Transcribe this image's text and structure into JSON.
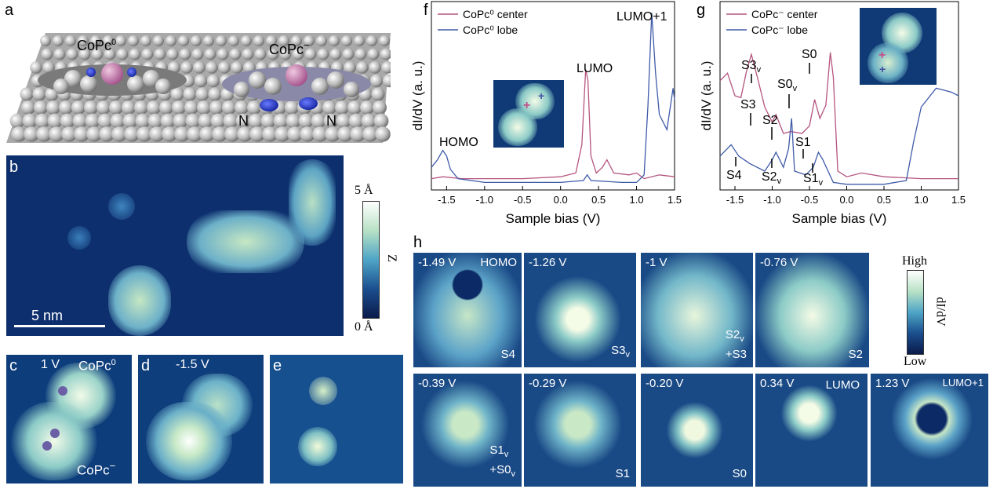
{
  "panels": {
    "a": {
      "letter": "a",
      "mol_left": "CoPc",
      "mol_left_sup": "0",
      "mol_right": "CoPc",
      "mol_right_sup": "−",
      "n_left": "N",
      "n_right": "N"
    },
    "b": {
      "letter": "b",
      "scalebar": "5 nm",
      "cbar_top": "5 Å",
      "cbar_bottom": "0 Å",
      "cbar_label": "Z"
    },
    "c": {
      "letter": "c",
      "bias": "1 V",
      "top_label": "CoPc",
      "top_sup": "0",
      "bottom_label": "CoPc",
      "bottom_sup": "−"
    },
    "d": {
      "letter": "d",
      "bias": "-1.5 V"
    },
    "e": {
      "letter": "e"
    },
    "f": {
      "letter": "f"
    },
    "g": {
      "letter": "g"
    },
    "h": {
      "letter": "h",
      "cbar_top": "High",
      "cbar_bottom": "Low",
      "cbar_label": "dI/dV"
    }
  },
  "chart_data": [
    {
      "type": "line",
      "panel": "f",
      "xlabel": "Sample bias (V)",
      "ylabel": "dI/dV (a. u.)",
      "xlim": [
        -1.7,
        1.5
      ],
      "xticks": [
        "-1.5",
        "-1.0",
        "-0.5",
        "0.0",
        "0.5",
        "1.0",
        "1.5"
      ],
      "legend": "top-left",
      "series": [
        {
          "name": "CoPc⁰ center",
          "color": "#b5547e",
          "x": [
            -1.7,
            -1.55,
            -1.3,
            -1.0,
            -0.5,
            0.0,
            0.2,
            0.28,
            0.33,
            0.36,
            0.4,
            0.47,
            0.55,
            0.61,
            0.7,
            0.9,
            1.0,
            1.1,
            1.3,
            1.5
          ],
          "y": [
            0.06,
            0.07,
            0.06,
            0.06,
            0.06,
            0.07,
            0.09,
            0.24,
            0.64,
            0.58,
            0.18,
            0.09,
            0.12,
            0.16,
            0.09,
            0.08,
            0.09,
            0.06,
            0.08,
            0.07
          ]
        },
        {
          "name": "CoPc⁰ lobe",
          "color": "#3f5ba9",
          "x": [
            -1.7,
            -1.62,
            -1.55,
            -1.5,
            -1.45,
            -1.35,
            -1.0,
            -0.5,
            0.0,
            0.3,
            0.35,
            0.4,
            0.8,
            1.0,
            1.1,
            1.15,
            1.2,
            1.25,
            1.3,
            1.4,
            1.48,
            1.5
          ],
          "y": [
            0.12,
            0.16,
            0.21,
            0.18,
            0.11,
            0.06,
            0.04,
            0.04,
            0.04,
            0.05,
            0.08,
            0.05,
            0.04,
            0.04,
            0.08,
            0.45,
            0.94,
            0.62,
            0.4,
            0.32,
            0.54,
            0.48
          ]
        }
      ],
      "annotations": [
        "HOMO",
        "LUMO",
        "LUMO+1"
      ]
    },
    {
      "type": "line",
      "panel": "g",
      "xlabel": "Sample bias (V)",
      "ylabel": "dI/dV (a. u.)",
      "xlim": [
        -1.7,
        1.5
      ],
      "xticks": [
        "-1.5",
        "-1.0",
        "-0.5",
        "0.0",
        "0.5",
        "1.0",
        "1.5"
      ],
      "legend": "top-left",
      "series": [
        {
          "name": "CoPc⁻ center",
          "color": "#b5547e",
          "x": [
            -1.7,
            -1.6,
            -1.5,
            -1.42,
            -1.35,
            -1.28,
            -1.2,
            -1.1,
            -1.0,
            -0.95,
            -0.85,
            -0.75,
            -0.6,
            -0.5,
            -0.43,
            -0.36,
            -0.28,
            -0.22,
            -0.18,
            -0.12,
            0.0,
            0.2,
            0.5,
            1.0,
            1.5
          ],
          "y": [
            0.58,
            0.62,
            0.5,
            0.49,
            0.62,
            0.72,
            0.6,
            0.44,
            0.36,
            0.4,
            0.3,
            0.31,
            0.3,
            0.34,
            0.48,
            0.38,
            0.45,
            0.73,
            0.6,
            0.1,
            0.07,
            0.09,
            0.07,
            0.06,
            0.06
          ]
        },
        {
          "name": "CoPc⁻ lobe",
          "color": "#3f5ba9",
          "x": [
            -1.7,
            -1.55,
            -1.45,
            -1.3,
            -1.1,
            -1.0,
            -0.95,
            -0.85,
            -0.78,
            -0.74,
            -0.7,
            -0.55,
            -0.45,
            -0.38,
            -0.32,
            -0.25,
            -0.18,
            0.0,
            0.5,
            0.8,
            0.9,
            1.0,
            1.2,
            1.4,
            1.5
          ],
          "y": [
            0.18,
            0.24,
            0.18,
            0.14,
            0.1,
            0.16,
            0.2,
            0.12,
            0.22,
            0.38,
            0.1,
            0.08,
            0.12,
            0.2,
            0.16,
            0.1,
            0.04,
            0.03,
            0.03,
            0.05,
            0.26,
            0.44,
            0.54,
            0.52,
            0.5
          ]
        }
      ],
      "annotations": [
        "S3v",
        "S3",
        "S2",
        "S0v",
        "S0",
        "S1",
        "S4",
        "S2v",
        "S1v"
      ]
    }
  ],
  "maps": [
    {
      "id": "homo",
      "bias": "-1.49 V",
      "state": "HOMO",
      "state_pos": "tr",
      "label": "S4",
      "label_sub": ""
    },
    {
      "id": "s3v",
      "bias": "-1.26 V",
      "state": "",
      "label": "S3",
      "label_sub": "v"
    },
    {
      "id": "s2v",
      "bias": "-1 V",
      "state": "",
      "label": "S2",
      "label_sub": "v",
      "label2": "+S3"
    },
    {
      "id": "s2",
      "bias": "-0.76 V",
      "state": "",
      "label": "S2",
      "label_sub": ""
    },
    {
      "id": "s1v",
      "bias": "-0.39 V",
      "state": "",
      "label": "S1",
      "label_sub": "v",
      "label2": "+S0",
      "label2_sub": "v"
    },
    {
      "id": "s1",
      "bias": "-0.29 V",
      "state": "",
      "label": "S1",
      "label_sub": ""
    },
    {
      "id": "s0",
      "bias": "-0.20 V",
      "state": "",
      "label": "S0",
      "label_sub": ""
    },
    {
      "id": "lumo",
      "bias": "0.34 V",
      "state": "LUMO",
      "label": "",
      "label_sub": ""
    },
    {
      "id": "lumo1",
      "bias": "1.23 V",
      "state": "LUMO+1",
      "label": "",
      "label_sub": ""
    }
  ]
}
